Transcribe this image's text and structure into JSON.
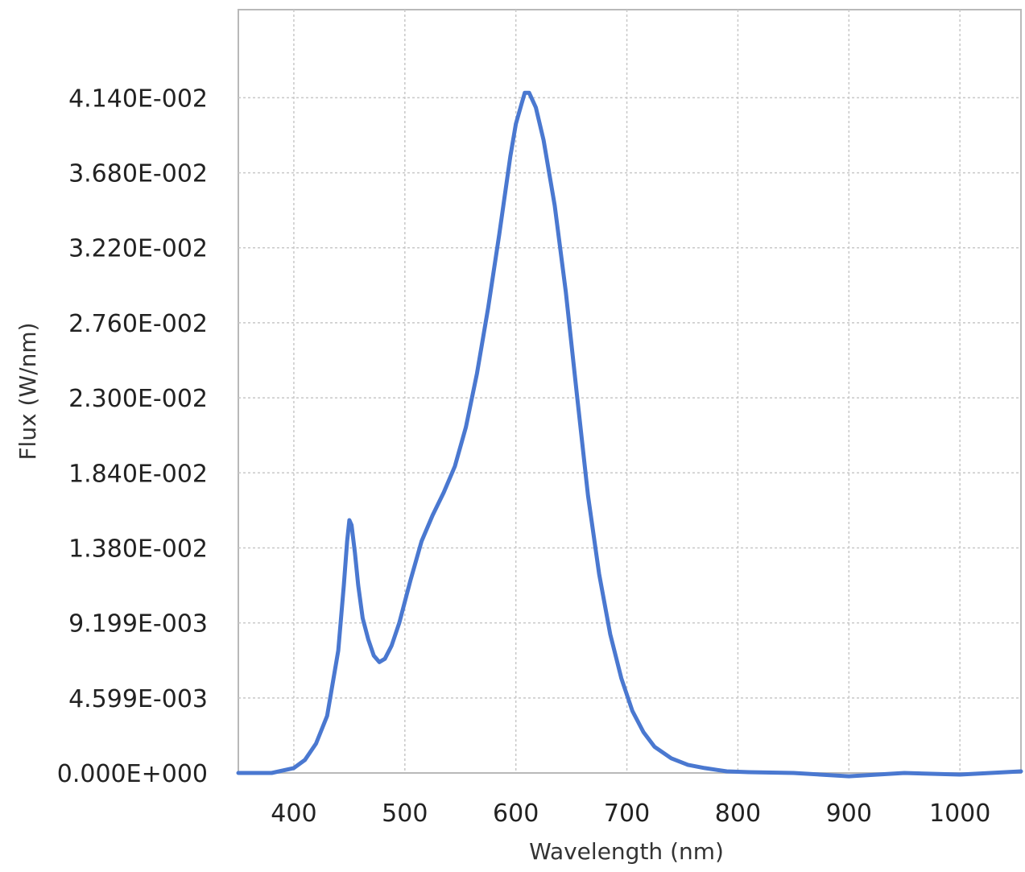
{
  "chart_data": {
    "type": "line",
    "title": "",
    "xlabel": "Wavelength (nm)",
    "ylabel": "Flux (W/nm)",
    "xlim": [
      350,
      1055
    ],
    "ylim": [
      0,
      0.0468
    ],
    "x_ticks": [
      400,
      500,
      600,
      700,
      800,
      900,
      1000
    ],
    "x_tick_labels": [
      "400",
      "500",
      "600",
      "700",
      "800",
      "900",
      "1000"
    ],
    "y_ticks": [
      0,
      0.004599,
      0.009199,
      0.0138,
      0.0184,
      0.023,
      0.0276,
      0.0322,
      0.0368,
      0.0414
    ],
    "y_tick_labels": [
      "0.000E+000",
      "4.599E-003",
      "9.199E-003",
      "1.380E-002",
      "1.840E-002",
      "2.300E-002",
      "2.760E-002",
      "3.220E-002",
      "3.680E-002",
      "4.140E-002"
    ],
    "grid": true,
    "line_color": "#4a78d0",
    "series": [
      {
        "x": [
          350,
          380,
          400,
          410,
          420,
          430,
          440,
          445,
          448,
          450,
          452,
          455,
          458,
          462,
          467,
          472,
          477,
          482,
          488,
          495,
          505,
          515,
          525,
          535,
          545,
          555,
          565,
          575,
          585,
          595,
          600,
          605,
          608,
          612,
          618,
          625,
          635,
          645,
          655,
          665,
          675,
          685,
          695,
          705,
          715,
          725,
          740,
          755,
          770,
          790,
          810,
          850,
          900,
          950,
          1000,
          1055
        ],
        "y": [
          0.0,
          0.0,
          0.0003,
          0.0008,
          0.0018,
          0.0035,
          0.0075,
          0.0115,
          0.0142,
          0.0155,
          0.0152,
          0.0135,
          0.0115,
          0.0095,
          0.0082,
          0.0072,
          0.0068,
          0.007,
          0.0078,
          0.0092,
          0.0118,
          0.0142,
          0.0158,
          0.0172,
          0.0188,
          0.0212,
          0.0245,
          0.0285,
          0.033,
          0.0378,
          0.0398,
          0.041,
          0.0417,
          0.0417,
          0.0408,
          0.0388,
          0.0348,
          0.0295,
          0.0232,
          0.017,
          0.0122,
          0.0085,
          0.0058,
          0.0038,
          0.0025,
          0.0016,
          0.0009,
          0.0005,
          0.0003,
          0.0001,
          5e-05,
          0.0,
          -0.0002,
          0.0,
          -0.0001,
          0.0001
        ]
      }
    ]
  }
}
